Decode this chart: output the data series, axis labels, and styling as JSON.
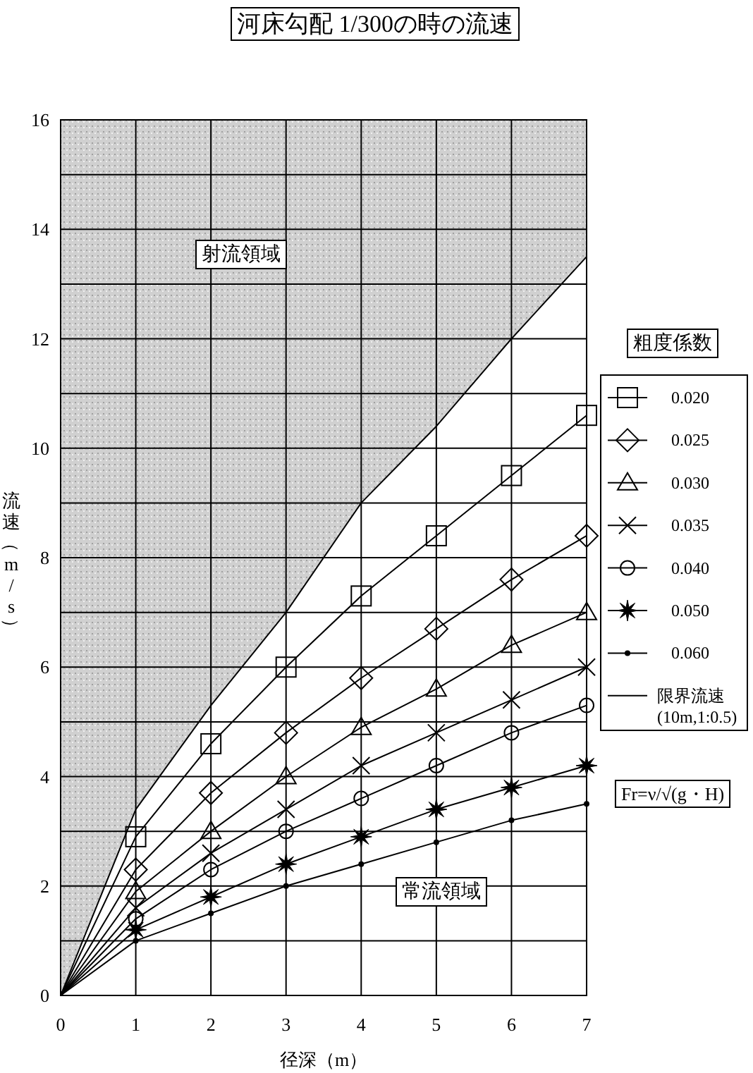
{
  "chart_data": {
    "type": "line",
    "title": "河床勾配 1/300の時の流速",
    "xlabel": "径深（m）",
    "ylabel": "流速（m/s）",
    "legend_title": "粗度係数",
    "x": [
      0,
      1,
      2,
      3,
      4,
      5,
      6,
      7
    ],
    "xlim": [
      0,
      7
    ],
    "xticks": [
      0,
      1,
      2,
      3,
      4,
      5,
      6,
      7
    ],
    "ylim": [
      0,
      16
    ],
    "yticks": [
      0,
      {
        "value": 1,
        "label": null
      },
      2,
      {
        "value": 3,
        "label": null
      },
      4,
      {
        "value": 5,
        "label": null
      },
      6,
      {
        "value": 7,
        "label": null
      },
      8,
      {
        "value": 9,
        "label": null
      },
      10,
      {
        "value": 11,
        "label": null
      },
      12,
      {
        "value": 13,
        "label": null
      },
      14,
      {
        "value": 15,
        "label": null
      },
      16
    ],
    "grid": true,
    "legend": "right",
    "line_style": "solid",
    "series": [
      {
        "name": "0.020",
        "color": "#000000",
        "marker": "square",
        "values": [
          0,
          2.9,
          4.6,
          6.0,
          7.3,
          8.4,
          9.5,
          10.6
        ]
      },
      {
        "name": "0.025",
        "color": "#000000",
        "marker": "diamond",
        "values": [
          0,
          2.3,
          3.7,
          4.8,
          5.8,
          6.7,
          7.6,
          8.4
        ]
      },
      {
        "name": "0.030",
        "color": "#000000",
        "marker": "triangle",
        "values": [
          0,
          1.9,
          3.0,
          4.0,
          4.9,
          5.6,
          6.4,
          7.0
        ]
      },
      {
        "name": "0.035",
        "color": "#000000",
        "marker": "cross",
        "values": [
          0,
          1.6,
          2.6,
          3.4,
          4.2,
          4.8,
          5.4,
          6.0
        ]
      },
      {
        "name": "0.040",
        "color": "#000000",
        "marker": "circle",
        "values": [
          0,
          1.4,
          2.3,
          3.0,
          3.6,
          4.2,
          4.8,
          5.3
        ]
      },
      {
        "name": "0.050",
        "color": "#000000",
        "marker": "star",
        "values": [
          0,
          1.2,
          1.8,
          2.4,
          2.9,
          3.4,
          3.8,
          4.2
        ]
      },
      {
        "name": "0.060",
        "color": "#000000",
        "marker": "circle",
        "values": [
          0,
          1.0,
          1.5,
          2.0,
          2.4,
          2.8,
          3.2,
          3.5
        ]
      },
      {
        "name": "限界流速(10m,1:0.5)",
        "color": "#000000",
        "marker": "none",
        "values": [
          0,
          3.4,
          5.3,
          7.0,
          9.0,
          10.4,
          12.0,
          13.5
        ],
        "lower": [
          0,
          3.4,
          5.3,
          7.0,
          9.0,
          10.4,
          12.0,
          13.5
        ],
        "upper": [
          16,
          16,
          16,
          16,
          16,
          16,
          16,
          16
        ]
      }
    ],
    "annotations": [
      "射流領域",
      "常流領域",
      "Fr=ν/√(g・H)"
    ]
  }
}
